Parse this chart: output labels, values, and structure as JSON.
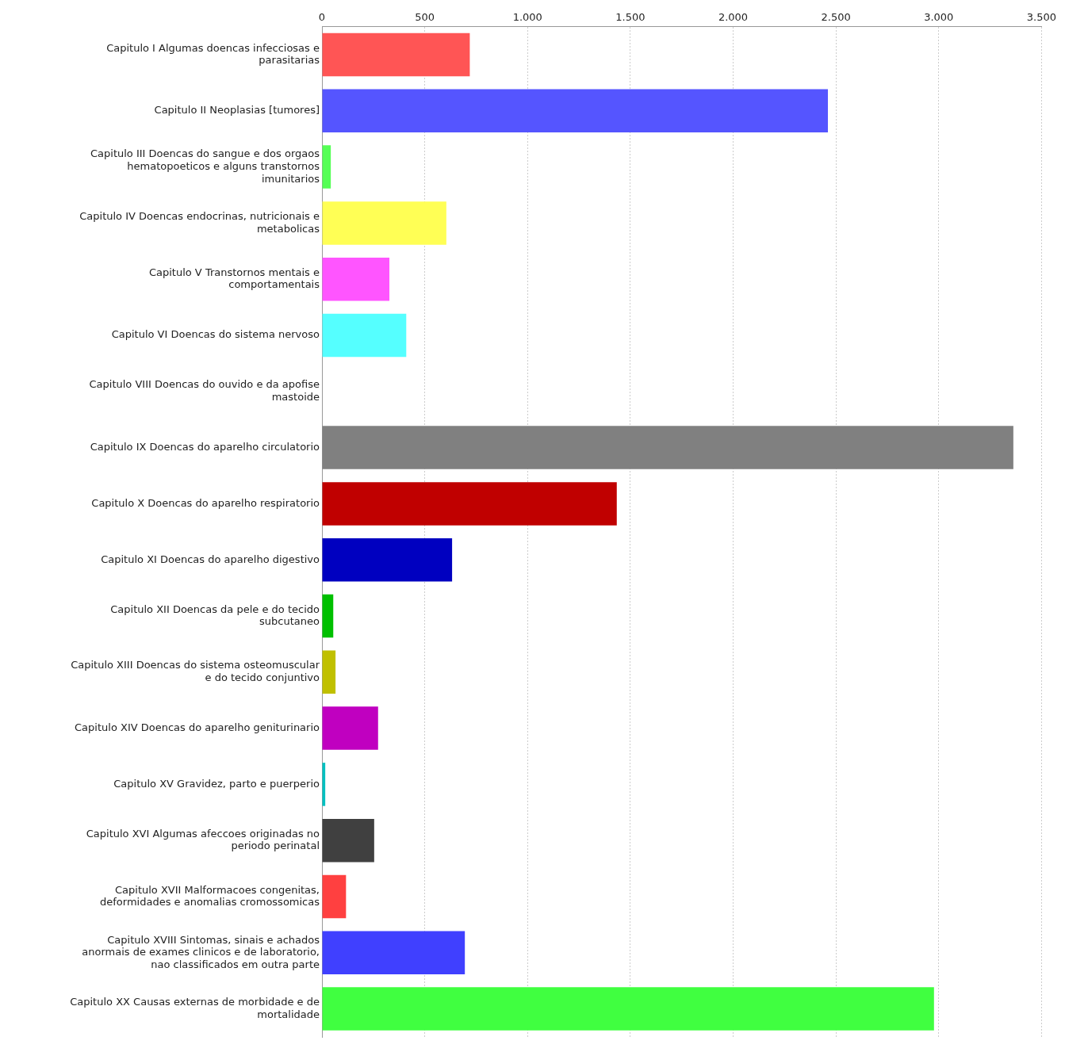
{
  "chart_data": {
    "type": "bar",
    "orientation": "horizontal",
    "categories": [
      "Capitulo I Algumas doencas infecciosas e parasitarias",
      "Capitulo II Neoplasias [tumores]",
      "Capitulo III Doencas do sangue e dos orgaos hematopoeticos e alguns transtornos imunitarios",
      "Capitulo IV Doencas endocrinas, nutricionais e metabolicas",
      "Capitulo V Transtornos mentais e comportamentais",
      "Capitulo VI Doencas do sistema nervoso",
      "Capitulo VIII Doencas do ouvido e da apofise mastoide",
      "Capitulo IX Doencas do aparelho circulatorio",
      "Capitulo X Doencas do aparelho respiratorio",
      "Capitulo XI Doencas do aparelho digestivo",
      "Capitulo XII Doencas da pele e do tecido subcutaneo",
      "Capitulo XIII Doencas do sistema osteomuscular e do tecido conjuntivo",
      "Capitulo XIV Doencas do aparelho geniturinario",
      "Capitulo XV Gravidez, parto e puerperio",
      "Capitulo XVI Algumas afeccoes originadas no periodo perinatal",
      "Capitulo XVII Malformacoes congenitas, deformidades e anomalias cromossomicas",
      "Capitulo XVIII Sintomas, sinais e achados anormais de exames clinicos e de laboratorio, nao classificados em outra parte",
      "Capitulo XX Causas externas de morbidade e de mortalidade"
    ],
    "values": [
      719,
      2461,
      43,
      605,
      328,
      410,
      0,
      3363,
      1434,
      633,
      55,
      66,
      273,
      16,
      254,
      117,
      695,
      2977
    ],
    "colors": [
      "#ff5555",
      "#5555ff",
      "#55ff55",
      "#ffff55",
      "#ff55ff",
      "#55ffff",
      "#555555",
      "#808080",
      "#c00000",
      "#0000c0",
      "#00c000",
      "#c0c000",
      "#c000c0",
      "#00c0c0",
      "#404040",
      "#ff4040",
      "#4040ff",
      "#40ff40"
    ],
    "xlim": [
      0,
      3500
    ],
    "xticks": [
      0,
      500,
      {
        "value": 1000,
        "label": "1.000"
      },
      {
        "value": 1500,
        "label": "1.500"
      },
      {
        "value": 2000,
        "label": "2.000"
      },
      {
        "value": 2500,
        "label": "2.500"
      },
      {
        "value": 3000,
        "label": "3.000"
      },
      {
        "value": 3500,
        "label": "3.500"
      }
    ],
    "grid": "x",
    "legend": false
  }
}
